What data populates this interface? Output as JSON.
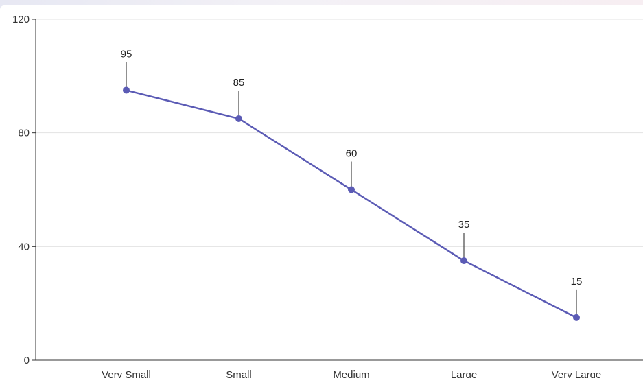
{
  "chart_data": {
    "type": "line",
    "categories": [
      "Very Small",
      "Small",
      "Medium",
      "Large",
      "Very Large"
    ],
    "series": [
      {
        "values": [
          95,
          85,
          60,
          35,
          15
        ],
        "color": "#5b5bb5"
      }
    ],
    "data_labels": [
      "95",
      "85",
      "60",
      "35",
      "15"
    ],
    "yticks": [
      "0",
      "40",
      "80",
      "120"
    ],
    "ytick_values": [
      0,
      40,
      80,
      120
    ],
    "ylim": [
      0,
      120
    ],
    "grid": true,
    "legend": "none",
    "colors": {
      "line": "#5b5bb5",
      "grid": "#e3e3e3",
      "axis": "#333333"
    }
  }
}
